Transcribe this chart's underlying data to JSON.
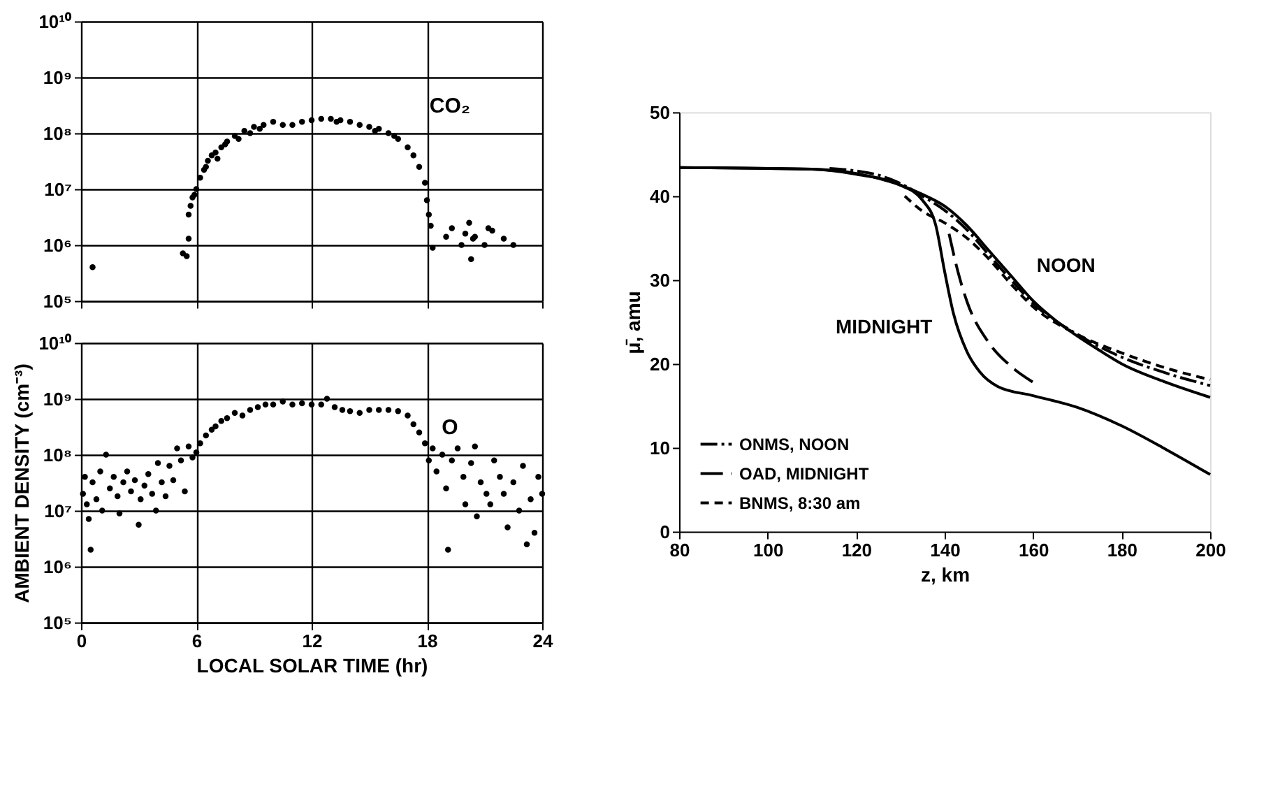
{
  "chart_data": [
    {
      "type": "scatter",
      "marker": "circle",
      "grid": true,
      "log": "y",
      "tick_labels": "y",
      "xlim": [
        0,
        24
      ],
      "xticks": [
        0,
        6,
        12,
        18,
        24
      ],
      "ylim": [
        100000,
        10000000000
      ],
      "yticks": [
        {
          "value": 100000,
          "label": "10⁵"
        },
        {
          "value": 1000000,
          "label": "10⁶"
        },
        {
          "value": 10000000,
          "label": "10⁷"
        },
        {
          "value": 100000000,
          "label": "10⁸"
        },
        {
          "value": 1000000000,
          "label": "10⁹"
        },
        {
          "value": 10000000000,
          "label": "10¹⁰"
        }
      ],
      "annotations": [
        "CO₂"
      ],
      "series": [
        {
          "color": "#000000",
          "x": [
            0.6,
            5.3,
            5.5,
            5.6,
            5.6,
            5.7,
            5.8,
            5.9,
            6.0,
            6.2,
            6.4,
            6.5,
            6.6,
            6.8,
            7.0,
            7.1,
            7.3,
            7.5,
            7.6,
            8.0,
            8.2,
            8.5,
            8.8,
            9.0,
            9.3,
            9.5,
            10.0,
            10.5,
            11.0,
            11.5,
            12.0,
            12.5,
            13.0,
            13.3,
            13.5,
            14.0,
            14.5,
            15.0,
            15.3,
            15.5,
            16.0,
            16.3,
            16.5,
            17.0,
            17.3,
            17.6,
            17.9,
            18.0,
            18.1,
            18.2,
            18.3,
            19.0,
            19.3,
            19.8,
            20.0,
            20.2,
            20.3,
            20.4,
            20.5,
            21.0,
            21.2,
            21.4,
            22.0,
            22.5
          ],
          "values": [
            400000,
            710000,
            630000,
            1300000,
            3500000,
            5000000,
            7100000,
            7900000,
            10000000,
            16000000,
            22000000,
            25000000,
            32000000,
            40000000,
            45000000,
            35000000,
            56000000,
            63000000,
            71000000,
            89000000,
            79000000,
            110000000,
            100000000,
            130000000,
            120000000,
            140000000,
            160000000,
            140000000,
            140000000,
            160000000,
            170000000,
            180000000,
            180000000,
            160000000,
            170000000,
            160000000,
            140000000,
            130000000,
            110000000,
            120000000,
            100000000,
            89000000,
            79000000,
            56000000,
            40000000,
            25000000,
            13000000,
            6300000,
            3500000,
            2200000,
            890000,
            1400000,
            2000000,
            1000000,
            1600000,
            2500000,
            560000,
            1300000,
            1400000,
            1000000,
            2000000,
            1800000,
            1300000,
            1000000
          ]
        }
      ]
    },
    {
      "type": "scatter",
      "marker": "circle",
      "grid": true,
      "log": "y",
      "xlabel": "LOCAL SOLAR TIME (hr)",
      "ylabel": "AMBIENT DENSITY (cm⁻³)",
      "xlim": [
        0,
        24
      ],
      "xticks": [
        0,
        6,
        12,
        18,
        24
      ],
      "ylim": [
        100000,
        10000000000
      ],
      "yticks": [
        {
          "value": 100000,
          "label": "10⁵"
        },
        {
          "value": 1000000,
          "label": "10⁶"
        },
        {
          "value": 10000000,
          "label": "10⁷"
        },
        {
          "value": 100000000,
          "label": "10⁸"
        },
        {
          "value": 1000000000,
          "label": "10⁹"
        },
        {
          "value": 10000000000,
          "label": "10¹⁰"
        }
      ],
      "annotations": [
        "O"
      ],
      "series": [
        {
          "color": "#000000",
          "x": [
            0.1,
            0.2,
            0.3,
            0.4,
            0.5,
            0.6,
            0.8,
            1.0,
            1.1,
            1.3,
            1.5,
            1.7,
            1.9,
            2.0,
            2.2,
            2.4,
            2.6,
            2.8,
            3.0,
            3.1,
            3.3,
            3.5,
            3.7,
            3.9,
            4.0,
            4.2,
            4.4,
            4.6,
            4.8,
            5.0,
            5.2,
            5.4,
            5.6,
            5.8,
            6.0,
            6.2,
            6.5,
            6.8,
            7.0,
            7.3,
            7.6,
            8.0,
            8.4,
            8.8,
            9.2,
            9.6,
            10.0,
            10.5,
            11.0,
            11.5,
            12.0,
            12.5,
            12.8,
            13.2,
            13.6,
            14.0,
            14.5,
            15.0,
            15.5,
            16.0,
            16.5,
            17.0,
            17.3,
            17.6,
            17.9,
            18.1,
            18.3,
            18.5,
            18.8,
            19.0,
            19.1,
            19.3,
            19.6,
            19.9,
            20.0,
            20.3,
            20.5,
            20.6,
            20.8,
            21.1,
            21.3,
            21.5,
            21.8,
            22.0,
            22.2,
            22.5,
            22.8,
            23.0,
            23.2,
            23.4,
            23.6,
            23.8,
            24.0
          ],
          "values": [
            20000000,
            40000000,
            13000000,
            7100000,
            2000000,
            32000000,
            16000000,
            50000000,
            10000000,
            100000000,
            25000000,
            40000000,
            18000000,
            8900000,
            32000000,
            50000000,
            22000000,
            35000000,
            5600000,
            16000000,
            28000000,
            45000000,
            20000000,
            10000000,
            71000000,
            32000000,
            18000000,
            63000000,
            35000000,
            130000000,
            79000000,
            22000000,
            140000000,
            89000000,
            110000000,
            160000000,
            220000000,
            280000000,
            320000000,
            400000000,
            450000000,
            560000000,
            500000000,
            630000000,
            710000000,
            790000000,
            790000000,
            890000000,
            790000000,
            830000000,
            790000000,
            790000000,
            1000000000,
            710000000,
            630000000,
            600000000,
            560000000,
            630000000,
            630000000,
            630000000,
            600000000,
            500000000,
            350000000,
            250000000,
            160000000,
            79000000,
            130000000,
            50000000,
            100000000,
            25000000,
            2000000,
            79000000,
            130000000,
            40000000,
            13000000,
            71000000,
            140000000,
            7900000,
            32000000,
            20000000,
            13000000,
            79000000,
            40000000,
            20000000,
            5000000,
            32000000,
            10000000,
            63000000,
            2500000,
            16000000,
            4000000,
            40000000,
            20000000
          ]
        }
      ]
    },
    {
      "type": "line",
      "xlabel": "z, km",
      "ylabel": "μ̄, amu",
      "legend": "bottom left",
      "xlim": [
        80,
        200
      ],
      "xticks": [
        80,
        100,
        120,
        140,
        160,
        180,
        200
      ],
      "ylim": [
        0,
        50
      ],
      "yticks": [
        0,
        10,
        20,
        30,
        40,
        50
      ],
      "annotations": [
        {
          "text": "NOON",
          "x": 157,
          "y": 30
        },
        {
          "text": "MIDNIGHT",
          "x": 141,
          "y": 29
        }
      ],
      "series": [
        {
          "color": "#000000",
          "line_style": "solid",
          "x": [
            80,
            110,
            120,
            130,
            135,
            140,
            145,
            150,
            155,
            160,
            165,
            170,
            175,
            180,
            190,
            200
          ],
          "values": [
            43.4,
            43.2,
            42.7,
            41.3,
            40.2,
            38.8,
            36.5,
            33.5,
            30.5,
            27.5,
            25.2,
            23.3,
            21.6,
            20.0,
            17.8,
            16.0
          ]
        },
        {
          "color": "#000000",
          "line_style": "solid",
          "x": [
            80,
            110,
            120,
            130,
            135,
            138,
            140,
            142,
            145,
            148,
            152,
            160,
            170,
            180,
            190,
            200
          ],
          "values": [
            43.4,
            43.2,
            42.6,
            41.3,
            39.5,
            36.5,
            31.0,
            26.0,
            21.5,
            19.0,
            17.3,
            16.2,
            14.8,
            12.6,
            9.8,
            6.8
          ]
        },
        {
          "name": "ONMS, NOON",
          "color": "#000000",
          "line_style": "dashdot",
          "x": [
            114,
            120,
            125,
            130,
            135,
            140,
            145,
            150,
            155,
            160,
            170,
            180,
            190,
            200
          ],
          "values": [
            43.3,
            43.0,
            42.5,
            41.5,
            40.0,
            38.3,
            36.0,
            33.0,
            30.0,
            27.2,
            23.5,
            20.8,
            18.9,
            17.4
          ]
        },
        {
          "name": "OAD, MIDNIGHT",
          "color": "#000000",
          "line_style": "longdash",
          "x": [
            141,
            143,
            145,
            150,
            155,
            160
          ],
          "values": [
            35.5,
            31.0,
            27.5,
            22.5,
            19.7,
            17.8
          ]
        },
        {
          "name": "BNMS, 8:30 am",
          "color": "#000000",
          "line_style": "dashed",
          "x": [
            131,
            135,
            140,
            145,
            150,
            155,
            160,
            170,
            180,
            190,
            200
          ],
          "values": [
            40.0,
            38.2,
            36.8,
            35.0,
            32.5,
            29.5,
            26.8,
            23.5,
            21.3,
            19.5,
            18.1
          ]
        }
      ]
    }
  ]
}
